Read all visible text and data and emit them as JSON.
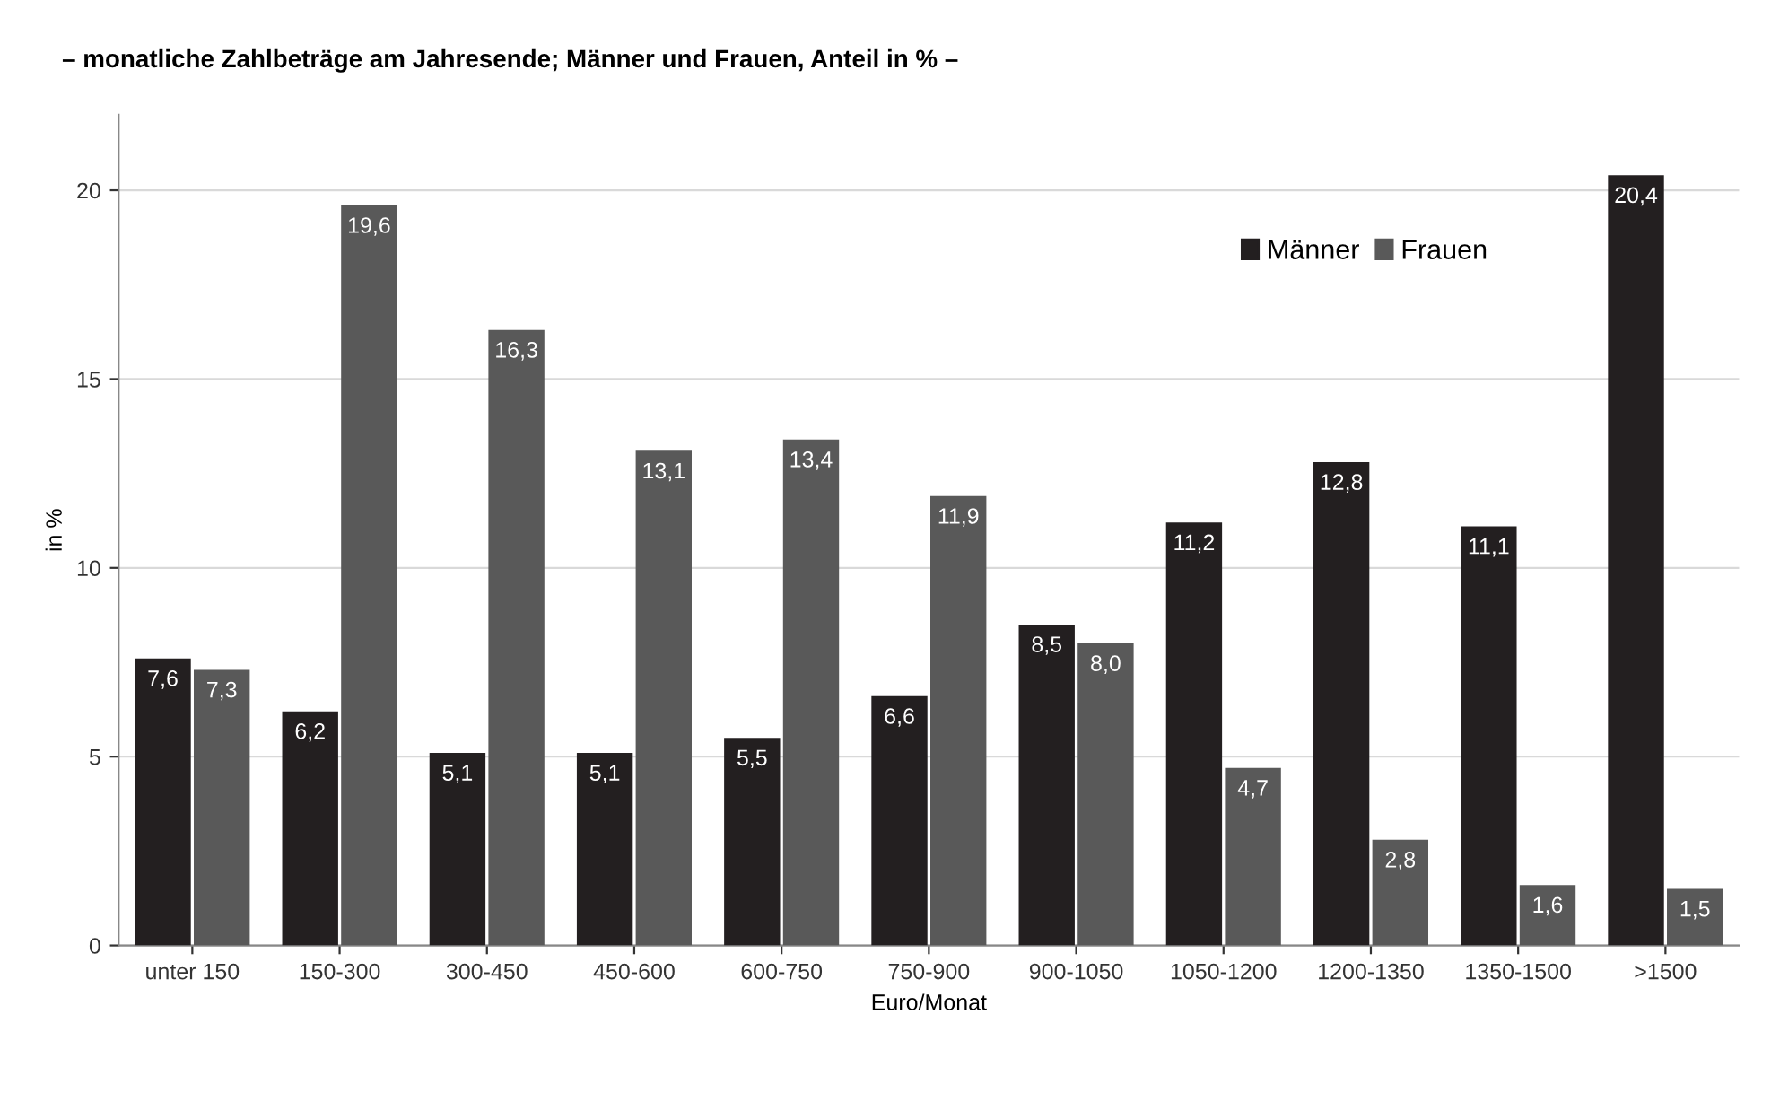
{
  "chart_data": {
    "type": "bar",
    "title": "– monatliche Zahlbeträge am Jahresende; Männer und Frauen, Anteil in % –",
    "xlabel": "Euro/Monat",
    "ylabel": "in %",
    "categories": [
      "unter 150",
      "150-300",
      "300-450",
      "450-600",
      "600-750",
      "750-900",
      "900-1050",
      "1050-1200",
      "1200-1350",
      "1350-1500",
      ">1500"
    ],
    "series": [
      {
        "name": "Männer",
        "color": "#231f20",
        "values": [
          7.6,
          6.2,
          5.1,
          5.1,
          5.5,
          6.6,
          8.5,
          11.2,
          12.8,
          11.1,
          20.4
        ],
        "value_labels": [
          "7,6",
          "6,2",
          "5,1",
          "5,1",
          "5,5",
          "6,6",
          "8,5",
          "11,2",
          "12,8",
          "11,1",
          "20,4"
        ]
      },
      {
        "name": "Frauen",
        "color": "#595959",
        "values": [
          7.3,
          19.6,
          16.3,
          13.1,
          13.4,
          11.9,
          8.0,
          4.7,
          2.8,
          1.6,
          1.5
        ],
        "value_labels": [
          "7,3",
          "19,6",
          "16,3",
          "13,1",
          "13,4",
          "11,9",
          "8,0",
          "4,7",
          "2,8",
          "1,6",
          "1,5"
        ]
      }
    ],
    "ylim": [
      0,
      22
    ],
    "yticks": [
      0,
      5,
      10,
      15,
      20
    ],
    "grid": "y",
    "legend": "top right"
  }
}
